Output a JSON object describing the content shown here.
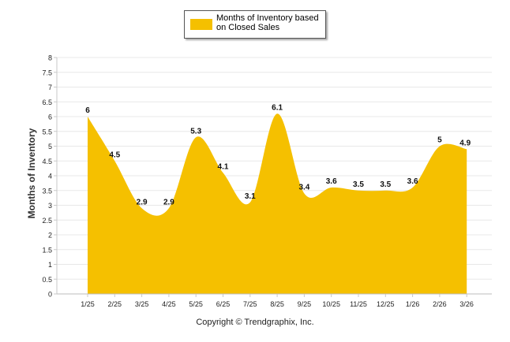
{
  "chart_data": {
    "type": "area",
    "title": "",
    "legend": {
      "label": "Months of Inventory based on Closed Sales",
      "position": "top-center"
    },
    "ylabel": "Months of Inventory",
    "xlabel": "",
    "ylim": [
      0,
      8
    ],
    "yticks": [
      "0",
      "0.5",
      "1",
      "1.5",
      "2",
      "2.5",
      "3",
      "3.5",
      "4",
      "4.5",
      "5",
      "5.5",
      "6",
      "6.5",
      "7",
      "7.5",
      "8"
    ],
    "categories": [
      "1/25",
      "2/25",
      "3/25",
      "4/25",
      "5/25",
      "6/25",
      "7/25",
      "8/25",
      "9/25",
      "10/25",
      "11/25",
      "12/25",
      "1/26",
      "2/26",
      "3/26"
    ],
    "series": [
      {
        "name": "Months of Inventory based on Closed Sales",
        "values": [
          6,
          4.5,
          2.9,
          2.9,
          5.3,
          4.1,
          3.1,
          6.1,
          3.4,
          3.6,
          3.5,
          3.5,
          3.6,
          5,
          4.9
        ],
        "labels": [
          "6",
          "4.5",
          "2.9",
          "2.9",
          "5.3",
          "4.1",
          "3.1",
          "6.1",
          "3.4",
          "3.6",
          "3.5",
          "3.5",
          "3.6",
          "5",
          "4.9"
        ]
      }
    ],
    "grid": true
  },
  "colors": {
    "fill": "#F5C000",
    "grid": "#e8e8e8",
    "axis": "#c8c8c8"
  },
  "footer": {
    "copyright": "Copyright © Trendgraphix, Inc."
  }
}
